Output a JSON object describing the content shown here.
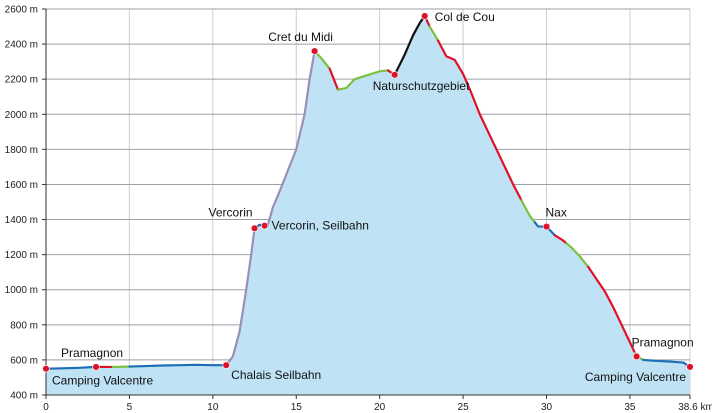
{
  "chart_data": {
    "type": "area",
    "title": "",
    "xlabel": "",
    "ylabel": "",
    "x_unit": "km",
    "y_unit": "m",
    "xlim": [
      0,
      38.6
    ],
    "ylim": [
      400,
      2600
    ],
    "x_ticks": [
      0,
      5,
      10,
      15,
      20,
      25,
      30,
      35,
      38.6
    ],
    "x_tick_labels": [
      "0",
      "5",
      "10",
      "15",
      "20",
      "25",
      "30",
      "35",
      "38.6 km"
    ],
    "y_ticks": [
      400,
      600,
      800,
      1000,
      1200,
      1400,
      1600,
      1800,
      2000,
      2200,
      2400,
      2600
    ],
    "y_tick_labels": [
      "400 m",
      "600 m",
      "800 m",
      "1000 m",
      "1200 m",
      "1400 m",
      "1600 m",
      "1800 m",
      "2000 m",
      "2200 m",
      "2400 m",
      "2600 m"
    ],
    "grid": true,
    "fill_color": "#bfe3f5",
    "profile": [
      [
        0,
        550
      ],
      [
        1,
        552
      ],
      [
        2,
        555
      ],
      [
        3,
        560
      ],
      [
        4,
        560
      ],
      [
        5,
        562
      ],
      [
        6,
        565
      ],
      [
        7,
        568
      ],
      [
        8,
        570
      ],
      [
        9,
        572
      ],
      [
        10,
        570
      ],
      [
        10.8,
        570
      ],
      [
        11.2,
        620
      ],
      [
        11.6,
        760
      ],
      [
        12,
        1000
      ],
      [
        12.3,
        1200
      ],
      [
        12.5,
        1350
      ],
      [
        12.8,
        1370
      ],
      [
        13.1,
        1365
      ],
      [
        13.3,
        1370
      ],
      [
        13.6,
        1470
      ],
      [
        14,
        1560
      ],
      [
        15,
        1800
      ],
      [
        15.5,
        2000
      ],
      [
        15.8,
        2200
      ],
      [
        16.1,
        2360
      ],
      [
        16.5,
        2320
      ],
      [
        17,
        2260
      ],
      [
        17.5,
        2140
      ],
      [
        18,
        2150
      ],
      [
        18.5,
        2200
      ],
      [
        19,
        2215
      ],
      [
        19.5,
        2230
      ],
      [
        20,
        2245
      ],
      [
        20.5,
        2250
      ],
      [
        20.9,
        2225
      ],
      [
        21.5,
        2340
      ],
      [
        22,
        2450
      ],
      [
        22.4,
        2520
      ],
      [
        22.7,
        2560
      ],
      [
        23,
        2500
      ],
      [
        23.5,
        2420
      ],
      [
        24,
        2330
      ],
      [
        24.5,
        2310
      ],
      [
        25,
        2230
      ],
      [
        25.5,
        2120
      ],
      [
        26,
        2000
      ],
      [
        26.5,
        1900
      ],
      [
        27,
        1800
      ],
      [
        27.5,
        1700
      ],
      [
        28,
        1600
      ],
      [
        28.5,
        1510
      ],
      [
        29,
        1420
      ],
      [
        29.5,
        1360
      ],
      [
        30,
        1360
      ],
      [
        30.5,
        1310
      ],
      [
        31,
        1280
      ],
      [
        31.5,
        1240
      ],
      [
        32,
        1190
      ],
      [
        32.5,
        1130
      ],
      [
        33,
        1060
      ],
      [
        33.5,
        990
      ],
      [
        34,
        900
      ],
      [
        34.5,
        800
      ],
      [
        35,
        700
      ],
      [
        35.4,
        620
      ],
      [
        35.8,
        600
      ],
      [
        36.5,
        595
      ],
      [
        37.5,
        590
      ],
      [
        38.2,
        585
      ],
      [
        38.6,
        560
      ]
    ],
    "trail_segments": [
      {
        "from": 0,
        "to": 2.9,
        "color": "#1d6fb5"
      },
      {
        "from": 2.9,
        "to": 4,
        "color": "#e0112b"
      },
      {
        "from": 4,
        "to": 5,
        "color": "#7cc142"
      },
      {
        "from": 5,
        "to": 10.8,
        "color": "#1d6fb5"
      },
      {
        "from": 10.8,
        "to": 12.5,
        "color": "#9b8fb8"
      },
      {
        "from": 12.5,
        "to": 13.3,
        "color": "#1d6fb5"
      },
      {
        "from": 13.3,
        "to": 16.1,
        "color": "#9b8fb8"
      },
      {
        "from": 16.1,
        "to": 17,
        "color": "#7cc142"
      },
      {
        "from": 17,
        "to": 17.5,
        "color": "#e0112b"
      },
      {
        "from": 17.5,
        "to": 20.5,
        "color": "#7cc142"
      },
      {
        "from": 20.5,
        "to": 21,
        "color": "#e0112b"
      },
      {
        "from": 21,
        "to": 22.7,
        "color": "#111111"
      },
      {
        "from": 22.7,
        "to": 23,
        "color": "#e0112b"
      },
      {
        "from": 23,
        "to": 23.5,
        "color": "#7cc142"
      },
      {
        "from": 23.5,
        "to": 28.5,
        "color": "#e0112b"
      },
      {
        "from": 28.5,
        "to": 29.3,
        "color": "#7cc142"
      },
      {
        "from": 29.3,
        "to": 30.5,
        "color": "#1d6fb5"
      },
      {
        "from": 30.5,
        "to": 31.2,
        "color": "#e0112b"
      },
      {
        "from": 31.2,
        "to": 32.5,
        "color": "#7cc142"
      },
      {
        "from": 32.5,
        "to": 35.3,
        "color": "#e0112b"
      },
      {
        "from": 35.3,
        "to": 35.8,
        "color": "#7cc142"
      },
      {
        "from": 35.8,
        "to": 38.6,
        "color": "#1d6fb5"
      }
    ],
    "waypoints": [
      {
        "name": "Camping Valcentre",
        "x": 0,
        "y": 550,
        "anchor": "start",
        "dx": 6,
        "dy": 16
      },
      {
        "name": "Pramagnon",
        "x": 3,
        "y": 560,
        "anchor": "middle",
        "dx": -4,
        "dy": -10
      },
      {
        "name": "Chalais Seilbahn",
        "x": 10.8,
        "y": 570,
        "anchor": "start",
        "dx": 5,
        "dy": 14
      },
      {
        "name": "Vercorin",
        "x": 12.5,
        "y": 1350,
        "anchor": "end",
        "dx": -2,
        "dy": -12
      },
      {
        "name": "Vercorin, Seilbahn",
        "x": 13.1,
        "y": 1365,
        "anchor": "start",
        "dx": 7,
        "dy": 4
      },
      {
        "name": "Cret du Midi",
        "x": 16.1,
        "y": 2360,
        "anchor": "middle",
        "dx": -14,
        "dy": -10
      },
      {
        "name": "Naturschutzgebiet",
        "x": 20.9,
        "y": 2225,
        "anchor": "start",
        "dx": -22,
        "dy": 15
      },
      {
        "name": "Col de Cou",
        "x": 22.7,
        "y": 2560,
        "anchor": "start",
        "dx": 10,
        "dy": 5
      },
      {
        "name": "Nax",
        "x": 30,
        "y": 1360,
        "anchor": "start",
        "dx": -1,
        "dy": -10
      },
      {
        "name": "Pramagnon",
        "x": 35.4,
        "y": 620,
        "anchor": "start",
        "dx": -5,
        "dy": -10
      },
      {
        "name": "Camping Valcentre",
        "x": 38.6,
        "y": 560,
        "anchor": "end",
        "dx": -4,
        "dy": 14
      }
    ],
    "waypoint_color": "#e0112b"
  }
}
